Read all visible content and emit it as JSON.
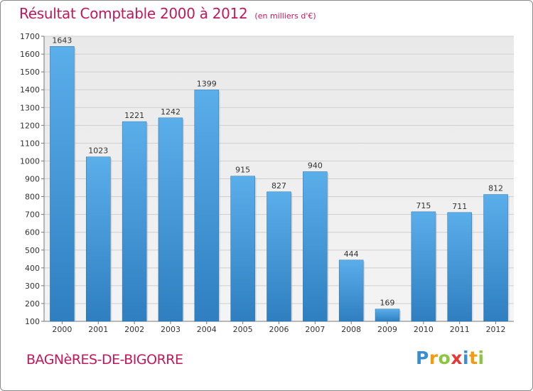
{
  "chart_data": {
    "type": "bar",
    "title": "Résultat Comptable 2000 à 2012",
    "subtitle": "(en milliers d'€)",
    "categories": [
      "2000",
      "2001",
      "2002",
      "2003",
      "2004",
      "2005",
      "2006",
      "2007",
      "2008",
      "2009",
      "2010",
      "2011",
      "2012"
    ],
    "values": [
      1643,
      1023,
      1221,
      1242,
      1399,
      915,
      827,
      940,
      444,
      169,
      715,
      711,
      812
    ],
    "ylim": [
      100,
      1700
    ],
    "yticks": [
      100,
      200,
      300,
      400,
      500,
      600,
      700,
      800,
      900,
      1000,
      1100,
      1200,
      1300,
      1400,
      1500,
      1600,
      1700
    ],
    "xlabel": "",
    "ylabel": "",
    "grid": true,
    "bar_color": "#4a9ad9"
  },
  "commune": "BAGNèRES-DE-BIGORRE",
  "logo": {
    "text": "Proxiti",
    "letters": [
      {
        "char": "P",
        "color": "#3a8ed0"
      },
      {
        "char": "r",
        "color": "#f39c12"
      },
      {
        "char": "o",
        "color": "#8cc63f"
      },
      {
        "char": "x",
        "color": "#e53935"
      },
      {
        "char": "i",
        "color": "#3a8ed0"
      },
      {
        "char": "t",
        "color": "#f39c12"
      },
      {
        "char": "i",
        "color": "#8cc63f"
      }
    ]
  }
}
